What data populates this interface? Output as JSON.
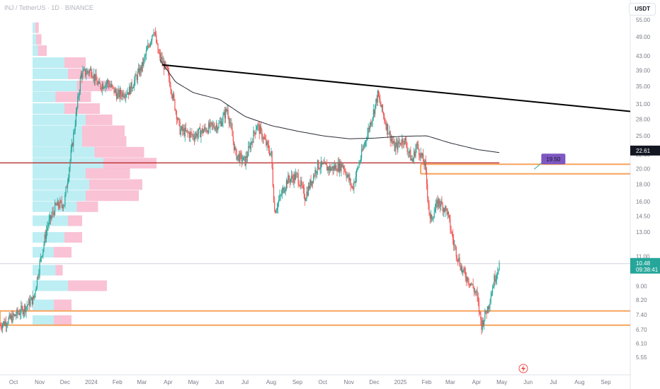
{
  "header": {
    "symbol_line": "INJ / TetherUS · 1D · BINANCE",
    "currency_badge": "USDT"
  },
  "colors": {
    "up": "#26a69a",
    "down": "#ef5350",
    "trendline": "#000000",
    "ma": "#2a2e39",
    "support_red": "#b71c1c",
    "zone_orange": "#f7a35c",
    "volume_up": "#b2ebf2",
    "volume_down": "#f8bbd0",
    "target_badge": "#7e57c2",
    "last_price_badge": "#26a69a",
    "current_price_badge": "#131722"
  },
  "chart_data": {
    "type": "candlestick",
    "y_scale": "log",
    "ylim": [
      5.55,
      55.0
    ],
    "y_ticks": [
      "55.00",
      "49.00",
      "43.00",
      "39.00",
      "35.00",
      "31.00",
      "28.00",
      "25.00",
      "22.00",
      "20.00",
      "18.00",
      "16.00",
      "14.50",
      "13.00",
      "11.00",
      "10.00",
      "9.00",
      "8.20",
      "7.40",
      "6.70",
      "6.10",
      "5.55"
    ],
    "x_ticks": [
      "Oct",
      "Nov",
      "Dec",
      "2024",
      "Feb",
      "Mar",
      "Apr",
      "May",
      "Jun",
      "Jul",
      "Aug",
      "Sep",
      "Oct",
      "Nov",
      "Dec",
      "2025",
      "Feb",
      "Mar",
      "Apr",
      "May",
      "Jun",
      "Jul",
      "Aug",
      "Sep"
    ],
    "price_path": [
      [
        "2023-09-15",
        6.9
      ],
      [
        "2023-10-01",
        7.3
      ],
      [
        "2023-10-15",
        7.8
      ],
      [
        "2023-10-25",
        8.3
      ],
      [
        "2023-11-01",
        10.5
      ],
      [
        "2023-11-10",
        13.5
      ],
      [
        "2023-11-20",
        15.5
      ],
      [
        "2023-11-30",
        15.8
      ],
      [
        "2023-12-10",
        24.0
      ],
      [
        "2023-12-20",
        38.0
      ],
      [
        "2024-01-01",
        39.0
      ],
      [
        "2024-01-10",
        35.0
      ],
      [
        "2024-01-20",
        36.0
      ],
      [
        "2024-02-01",
        33.0
      ],
      [
        "2024-02-15",
        34.0
      ],
      [
        "2024-03-01",
        40.0
      ],
      [
        "2024-03-10",
        47.0
      ],
      [
        "2024-03-15",
        52.0
      ],
      [
        "2024-03-20",
        44.0
      ],
      [
        "2024-04-01",
        38.0
      ],
      [
        "2024-04-15",
        26.0
      ],
      [
        "2024-05-01",
        25.0
      ],
      [
        "2024-05-20",
        26.5
      ],
      [
        "2024-06-01",
        27.0
      ],
      [
        "2024-06-10",
        30.0
      ],
      [
        "2024-06-20",
        22.0
      ],
      [
        "2024-07-01",
        21.0
      ],
      [
        "2024-07-15",
        27.0
      ],
      [
        "2024-08-01",
        22.0
      ],
      [
        "2024-08-05",
        15.0
      ],
      [
        "2024-08-20",
        18.5
      ],
      [
        "2024-09-01",
        19.0
      ],
      [
        "2024-09-10",
        16.5
      ],
      [
        "2024-09-25",
        20.5
      ],
      [
        "2024-10-10",
        20.0
      ],
      [
        "2024-10-25",
        20.5
      ],
      [
        "2024-11-05",
        17.5
      ],
      [
        "2024-11-20",
        24.0
      ],
      [
        "2024-12-01",
        30.0
      ],
      [
        "2024-12-05",
        33.0
      ],
      [
        "2024-12-15",
        27.0
      ],
      [
        "2024-12-25",
        23.0
      ],
      [
        "2025-01-05",
        24.5
      ],
      [
        "2025-01-15",
        21.0
      ],
      [
        "2025-01-20",
        23.5
      ],
      [
        "2025-01-30",
        20.5
      ],
      [
        "2025-02-05",
        14.0
      ],
      [
        "2025-02-15",
        16.0
      ],
      [
        "2025-02-25",
        15.0
      ],
      [
        "2025-03-05",
        12.0
      ],
      [
        "2025-03-15",
        10.0
      ],
      [
        "2025-03-25",
        9.2
      ],
      [
        "2025-04-01",
        8.5
      ],
      [
        "2025-04-07",
        6.9
      ],
      [
        "2025-04-15",
        7.9
      ],
      [
        "2025-04-22",
        9.4
      ],
      [
        "2025-04-28",
        10.48
      ]
    ],
    "moving_average": [
      [
        "2024-03-22",
        42.0
      ],
      [
        "2024-04-10",
        36.0
      ],
      [
        "2024-05-01",
        33.5
      ],
      [
        "2024-06-01",
        32.0
      ],
      [
        "2024-07-01",
        28.5
      ],
      [
        "2024-08-01",
        26.8
      ],
      [
        "2024-09-01",
        25.8
      ],
      [
        "2024-10-01",
        25.0
      ],
      [
        "2024-11-01",
        24.5
      ],
      [
        "2024-12-01",
        24.6
      ],
      [
        "2025-01-01",
        24.9
      ],
      [
        "2025-02-01",
        25.0
      ],
      [
        "2025-03-01",
        23.8
      ],
      [
        "2025-04-01",
        22.8
      ],
      [
        "2025-04-28",
        22.3
      ]
    ],
    "trendline": {
      "start": [
        "2024-03-25",
        40.5
      ],
      "end": [
        "2025-09-30",
        29.5
      ]
    },
    "red_level": {
      "price": 20.8,
      "start": "2023-09-15",
      "end": "2025-04-28"
    },
    "orange_zones": [
      {
        "start": "2025-01-25",
        "end": "2025-09-30",
        "from": 19.3,
        "to": 20.6
      },
      {
        "start": "2023-09-15",
        "end": "2025-09-30",
        "from": 6.9,
        "to": 7.6
      }
    ],
    "target_price": "19.50",
    "current_price": "22.61",
    "last_price": "10.48",
    "countdown": "09:38:41",
    "volume_profile": [
      {
        "price": 52.0,
        "up": 0.015,
        "down": 0.02
      },
      {
        "price": 48.0,
        "up": 0.02,
        "down": 0.03
      },
      {
        "price": 44.5,
        "up": 0.03,
        "down": 0.05
      },
      {
        "price": 41.0,
        "up": 0.18,
        "down": 0.12
      },
      {
        "price": 38.0,
        "up": 0.2,
        "down": 0.14
      },
      {
        "price": 35.0,
        "up": 0.25,
        "down": 0.2
      },
      {
        "price": 32.5,
        "up": 0.13,
        "down": 0.2
      },
      {
        "price": 30.0,
        "up": 0.18,
        "down": 0.2
      },
      {
        "price": 27.8,
        "up": 0.3,
        "down": 0.15
      },
      {
        "price": 25.8,
        "up": 0.28,
        "down": 0.24
      },
      {
        "price": 24.0,
        "up": 0.28,
        "down": 0.25
      },
      {
        "price": 22.3,
        "up": 0.35,
        "down": 0.28
      },
      {
        "price": 20.7,
        "up": 0.4,
        "down": 0.3
      },
      {
        "price": 19.3,
        "up": 0.3,
        "down": 0.25
      },
      {
        "price": 17.9,
        "up": 0.32,
        "down": 0.3
      },
      {
        "price": 16.6,
        "up": 0.3,
        "down": 0.3
      },
      {
        "price": 15.4,
        "up": 0.25,
        "down": 0.12
      },
      {
        "price": 14.0,
        "up": 0.2,
        "down": 0.08
      },
      {
        "price": 12.5,
        "up": 0.18,
        "down": 0.1
      },
      {
        "price": 11.3,
        "up": 0.12,
        "down": 0.1
      },
      {
        "price": 10.0,
        "up": 0.13,
        "down": 0.04
      },
      {
        "price": 9.0,
        "up": 0.2,
        "down": 0.22
      },
      {
        "price": 7.9,
        "up": 0.12,
        "down": 0.1
      },
      {
        "price": 7.1,
        "up": 0.12,
        "down": 0.1
      }
    ]
  }
}
